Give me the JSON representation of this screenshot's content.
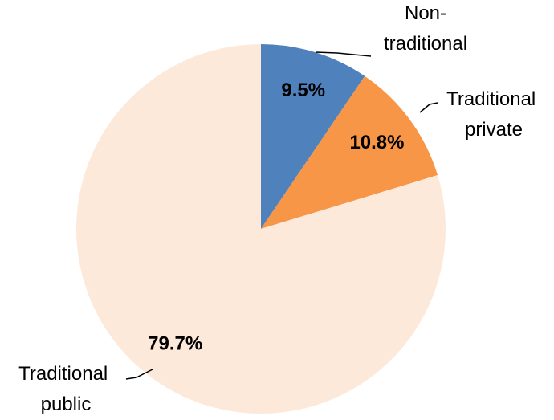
{
  "chart_data": {
    "type": "pie",
    "categories": [
      "Non-traditional",
      "Traditional private",
      "Traditional public"
    ],
    "values": [
      9.5,
      10.8,
      79.7
    ],
    "value_labels": [
      "9.5%",
      "10.8%",
      "79.7%"
    ],
    "colors": [
      "#4f81bd",
      "#f79646",
      "#fde9d9"
    ]
  }
}
